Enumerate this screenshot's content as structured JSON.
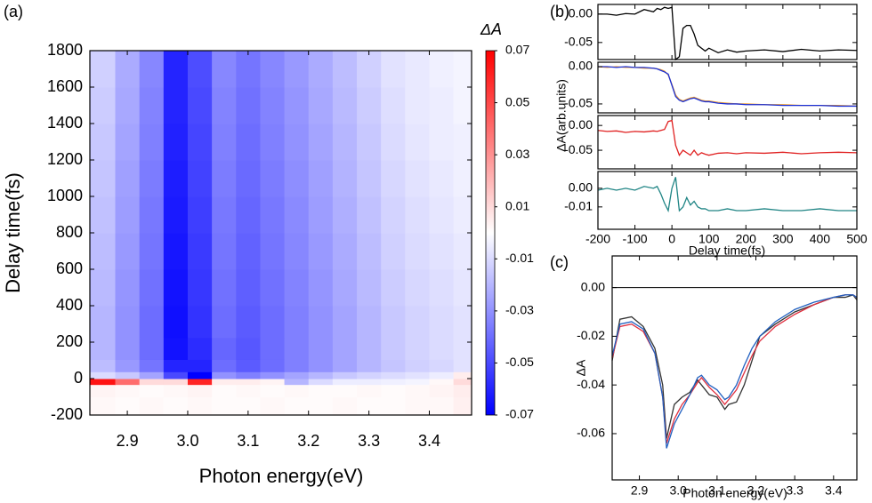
{
  "chart_data": [
    {
      "type": "heatmap",
      "label": "(a)",
      "xlabel": "Photon  energy(eV)",
      "ylabel": "Delay time(fs)",
      "colorbar_label": "ΔA",
      "xlim": [
        2.838,
        3.47
      ],
      "ylim": [
        -200,
        1800
      ],
      "xticks": [
        2.9,
        {
          "value": 3,
          "label": "3.0"
        },
        3.1,
        3.2,
        3.3,
        3.4
      ],
      "yticks": [
        -200,
        0,
        200,
        400,
        600,
        800,
        1000,
        1200,
        1400,
        1600,
        1800
      ],
      "zlim": [
        -0.07,
        0.07
      ],
      "zticks": [
        0.07,
        0.05,
        0.03,
        0.01,
        -0.01,
        -0.03,
        -0.05,
        -0.07
      ],
      "colormap": [
        "#0000ff",
        "#ffffff",
        "#ff0000"
      ],
      "x": [
        2.86,
        2.9,
        2.94,
        2.98,
        3.02,
        3.06,
        3.1,
        3.14,
        3.18,
        3.22,
        3.26,
        3.3,
        3.34,
        3.38,
        3.42,
        3.46
      ],
      "y": [
        -150,
        -50,
        -15,
        15,
        60,
        150,
        300,
        500,
        700,
        900,
        1100,
        1300,
        1500,
        1700
      ],
      "z": [
        [
          0.002,
          0.001,
          0.002,
          0.001,
          0.002,
          0.001,
          0.001,
          0.002,
          0.001,
          0.001,
          0.002,
          0.001,
          0.001,
          0.002,
          0.002,
          0.004
        ],
        [
          0.003,
          0.002,
          0.001,
          0.002,
          0.003,
          0.001,
          0.002,
          0.001,
          0.002,
          0.001,
          0.001,
          0.002,
          0.001,
          0.002,
          0.003,
          0.005
        ],
        [
          0.065,
          0.04,
          0.01,
          0.01,
          0.06,
          0.005,
          0.005,
          0.003,
          -0.02,
          -0.01,
          -0.005,
          -0.005,
          -0.004,
          -0.003,
          0.002,
          0.01
        ],
        [
          -0.01,
          -0.015,
          -0.025,
          -0.05,
          -0.07,
          -0.03,
          -0.035,
          -0.03,
          -0.025,
          -0.02,
          -0.015,
          -0.012,
          -0.01,
          -0.008,
          -0.005,
          0.005
        ],
        [
          -0.018,
          -0.028,
          -0.038,
          -0.06,
          -0.06,
          -0.04,
          -0.045,
          -0.04,
          -0.035,
          -0.03,
          -0.025,
          -0.02,
          -0.016,
          -0.013,
          -0.011,
          -0.008
        ],
        [
          -0.02,
          -0.03,
          -0.04,
          -0.065,
          -0.058,
          -0.042,
          -0.046,
          -0.04,
          -0.035,
          -0.03,
          -0.025,
          -0.02,
          -0.015,
          -0.012,
          -0.01,
          -0.008
        ],
        [
          -0.02,
          -0.03,
          -0.04,
          -0.066,
          -0.056,
          -0.04,
          -0.045,
          -0.04,
          -0.035,
          -0.03,
          -0.025,
          -0.02,
          -0.015,
          -0.012,
          -0.01,
          -0.008
        ],
        [
          -0.019,
          -0.029,
          -0.039,
          -0.065,
          -0.055,
          -0.039,
          -0.044,
          -0.039,
          -0.034,
          -0.029,
          -0.024,
          -0.019,
          -0.014,
          -0.011,
          -0.009,
          -0.007
        ],
        [
          -0.018,
          -0.028,
          -0.038,
          -0.064,
          -0.054,
          -0.038,
          -0.043,
          -0.038,
          -0.033,
          -0.028,
          -0.023,
          -0.018,
          -0.013,
          -0.01,
          -0.008,
          -0.006
        ],
        [
          -0.017,
          -0.027,
          -0.037,
          -0.063,
          -0.053,
          -0.037,
          -0.042,
          -0.037,
          -0.032,
          -0.027,
          -0.022,
          -0.017,
          -0.012,
          -0.009,
          -0.007,
          -0.005
        ],
        [
          -0.016,
          -0.026,
          -0.036,
          -0.062,
          -0.052,
          -0.036,
          -0.041,
          -0.036,
          -0.031,
          -0.026,
          -0.021,
          -0.016,
          -0.011,
          -0.008,
          -0.006,
          -0.004
        ],
        [
          -0.015,
          -0.025,
          -0.035,
          -0.061,
          -0.051,
          -0.035,
          -0.04,
          -0.035,
          -0.03,
          -0.025,
          -0.02,
          -0.015,
          -0.01,
          -0.007,
          -0.005,
          -0.004
        ],
        [
          -0.014,
          -0.024,
          -0.034,
          -0.06,
          -0.05,
          -0.034,
          -0.039,
          -0.034,
          -0.029,
          -0.024,
          -0.019,
          -0.014,
          -0.009,
          -0.006,
          -0.005,
          -0.003
        ],
        [
          -0.013,
          -0.023,
          -0.033,
          -0.06,
          -0.049,
          -0.033,
          -0.038,
          -0.033,
          -0.028,
          -0.023,
          -0.018,
          -0.013,
          -0.008,
          -0.006,
          -0.004,
          -0.003
        ]
      ]
    },
    {
      "type": "line",
      "label": "(b)",
      "xlabel": "Delay time(fs)",
      "ylabel": "ΔA(arb.units)",
      "xlim": [
        -200,
        500
      ],
      "xticks": [
        -200,
        -100,
        0,
        100,
        200,
        300,
        400,
        500
      ],
      "x": [
        -200,
        -175,
        -150,
        -125,
        -100,
        -75,
        -50,
        -40,
        -30,
        -20,
        -10,
        0,
        10,
        20,
        30,
        40,
        50,
        60,
        70,
        80,
        90,
        100,
        125,
        150,
        175,
        200,
        250,
        300,
        350,
        400,
        450,
        500
      ],
      "subplots": [
        {
          "ylim": [
            -0.08,
            0.017
          ],
          "yticks": [
            {
              "value": 0,
              "label": "0.00"
            },
            -0.05
          ],
          "series": [
            {
              "color": "#000000",
              "values": [
                0,
                0,
                -0.002,
                0.001,
                0,
                0.008,
                0.004,
                0.01,
                0.008,
                0.012,
                0.01,
                0.012,
                -0.08,
                -0.075,
                -0.025,
                -0.02,
                -0.02,
                -0.035,
                -0.055,
                -0.06,
                -0.065,
                -0.06,
                -0.068,
                -0.063,
                -0.067,
                -0.065,
                -0.063,
                -0.066,
                -0.062,
                -0.065,
                -0.063,
                -0.064
              ]
            }
          ]
        },
        {
          "ylim": [
            -0.062,
            0.006
          ],
          "yticks": [
            {
              "value": 0,
              "label": "0.00"
            },
            -0.05
          ],
          "series": [
            {
              "color": "#f0a030",
              "values": [
                0,
                -0.001,
                0,
                -0.001,
                -0.001,
                -0.002,
                -0.002,
                -0.003,
                -0.004,
                -0.006,
                -0.011,
                -0.024,
                -0.038,
                -0.044,
                -0.046,
                -0.044,
                -0.042,
                -0.041,
                -0.043,
                -0.045,
                -0.046,
                -0.046,
                -0.048,
                -0.049,
                -0.05,
                -0.05,
                -0.051,
                -0.051,
                -0.052,
                -0.052,
                -0.052,
                -0.053
              ]
            },
            {
              "color": "#1a2fd6",
              "values": [
                0,
                0,
                -0.001,
                0,
                -0.001,
                -0.001,
                -0.002,
                -0.003,
                -0.005,
                -0.007,
                -0.01,
                -0.025,
                -0.04,
                -0.045,
                -0.047,
                -0.045,
                -0.043,
                -0.042,
                -0.044,
                -0.046,
                -0.047,
                -0.047,
                -0.049,
                -0.05,
                -0.05,
                -0.051,
                -0.051,
                -0.052,
                -0.052,
                -0.052,
                -0.053,
                -0.053
              ]
            }
          ]
        },
        {
          "ylim": [
            -0.0875,
            0.02
          ],
          "yticks": [
            {
              "value": 0,
              "label": "0.00"
            },
            -0.05
          ],
          "series": [
            {
              "color": "#e02020",
              "values": [
                -0.01,
                -0.012,
                -0.011,
                -0.014,
                -0.012,
                -0.013,
                -0.011,
                -0.012,
                -0.01,
                -0.008,
                0.008,
                0.01,
                -0.04,
                -0.06,
                -0.05,
                -0.055,
                -0.06,
                -0.05,
                -0.06,
                -0.055,
                -0.058,
                -0.06,
                -0.056,
                -0.055,
                -0.057,
                -0.055,
                -0.056,
                -0.054,
                -0.057,
                -0.055,
                -0.054,
                -0.055
              ]
            }
          ]
        },
        {
          "ylim": [
            -0.022,
            0.009
          ],
          "yticks": [
            {
              "value": 0,
              "label": "0.00"
            },
            -0.01
          ],
          "series": [
            {
              "color": "#208585",
              "values": [
                -0.001,
                0,
                -0.001,
                0,
                -0.001,
                0.001,
                0,
                0.001,
                -0.003,
                -0.008,
                -0.012,
                0,
                0.006,
                -0.012,
                -0.01,
                -0.005,
                -0.009,
                -0.007,
                -0.01,
                -0.011,
                -0.011,
                -0.012,
                -0.012,
                -0.011,
                -0.012,
                -0.012,
                -0.011,
                -0.012,
                -0.012,
                -0.011,
                -0.012,
                -0.012
              ]
            }
          ]
        }
      ]
    },
    {
      "type": "line",
      "label": "(c)",
      "xlabel": "Photon energy(eV)",
      "ylabel": "ΔA",
      "xlim": [
        2.83,
        3.46
      ],
      "ylim": [
        -0.079,
        0.013
      ],
      "hline": 0,
      "xticks": [
        2.9,
        {
          "value": 3,
          "label": "3.0"
        },
        3.1,
        3.2,
        3.3,
        3.4
      ],
      "yticks": [
        {
          "value": 0,
          "label": "0.00"
        },
        -0.02,
        -0.04,
        -0.06
      ],
      "x": [
        2.83,
        2.85,
        2.88,
        2.91,
        2.94,
        2.96,
        2.97,
        2.99,
        3.01,
        3.03,
        3.05,
        3.06,
        3.08,
        3.1,
        3.12,
        3.13,
        3.15,
        3.17,
        3.19,
        3.21,
        3.25,
        3.3,
        3.35,
        3.4,
        3.43,
        3.45,
        3.46
      ],
      "series": [
        {
          "color": "#333333",
          "values": [
            -0.03,
            -0.013,
            -0.012,
            -0.016,
            -0.025,
            -0.04,
            -0.062,
            -0.048,
            -0.045,
            -0.043,
            -0.038,
            -0.04,
            -0.044,
            -0.045,
            -0.05,
            -0.048,
            -0.047,
            -0.04,
            -0.03,
            -0.02,
            -0.015,
            -0.01,
            -0.007,
            -0.004,
            -0.004,
            -0.003,
            -0.005
          ]
        },
        {
          "color": "#e03040",
          "values": [
            -0.029,
            -0.016,
            -0.015,
            -0.018,
            -0.027,
            -0.045,
            -0.064,
            -0.054,
            -0.048,
            -0.044,
            -0.039,
            -0.037,
            -0.041,
            -0.044,
            -0.048,
            -0.046,
            -0.042,
            -0.035,
            -0.028,
            -0.022,
            -0.016,
            -0.011,
            -0.007,
            -0.004,
            -0.003,
            -0.003,
            -0.004
          ]
        },
        {
          "color": "#2060c0",
          "values": [
            -0.028,
            -0.015,
            -0.014,
            -0.017,
            -0.027,
            -0.045,
            -0.066,
            -0.056,
            -0.05,
            -0.044,
            -0.037,
            -0.036,
            -0.04,
            -0.042,
            -0.046,
            -0.045,
            -0.04,
            -0.032,
            -0.025,
            -0.02,
            -0.014,
            -0.009,
            -0.006,
            -0.004,
            -0.003,
            -0.003,
            -0.004
          ]
        }
      ]
    }
  ]
}
